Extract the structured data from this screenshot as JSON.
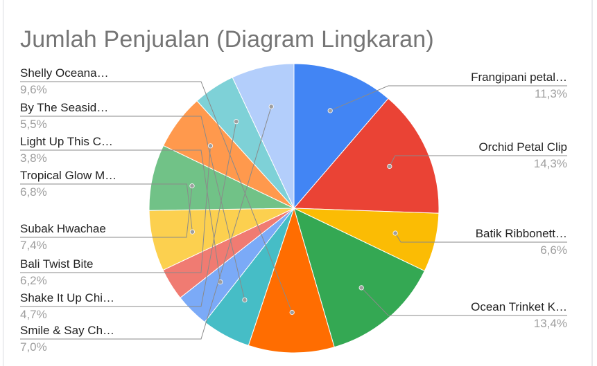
{
  "chart_data": {
    "type": "pie",
    "title": "Jumlah Penjualan (Diagram Lingkaran)",
    "legend": "labels-beside-slices",
    "slices": [
      {
        "label": "Frangipani petal…",
        "pct_label": "11,3%",
        "value": 11.3,
        "color": "#4285f4",
        "side": "right"
      },
      {
        "label": "Orchid Petal Clip",
        "pct_label": "14,3%",
        "value": 14.3,
        "color": "#ea4335",
        "side": "right"
      },
      {
        "label": "Batik Ribbonett…",
        "pct_label": "6,6%",
        "value": 6.6,
        "color": "#fbbc04",
        "side": "right"
      },
      {
        "label": "Ocean Trinket K…",
        "pct_label": "13,4%",
        "value": 13.4,
        "color": "#34a853",
        "side": "right"
      },
      {
        "label": "Shelly Oceana…",
        "pct_label": "9,6%",
        "value": 9.6,
        "color": "#ff6d01",
        "side": "left"
      },
      {
        "label": "By The Seasid…",
        "pct_label": "5,5%",
        "value": 5.5,
        "color": "#46bdc6",
        "side": "left"
      },
      {
        "label": "Light Up This C…",
        "pct_label": "3,8%",
        "value": 3.8,
        "color": "#7baaf7",
        "side": "left"
      },
      {
        "label": "",
        "pct_label": "",
        "value": 3.6,
        "color": "#f07b72",
        "side": "none"
      },
      {
        "label": "Tropical Glow M…",
        "pct_label": "6,8%",
        "value": 6.8,
        "color": "#fcd04f",
        "side": "left"
      },
      {
        "label": "Subak Hwachae",
        "pct_label": "7,4%",
        "value": 7.4,
        "color": "#71c287",
        "side": "left"
      },
      {
        "label": "Bali Twist Bite",
        "pct_label": "6,2%",
        "value": 6.2,
        "color": "#ff994d",
        "side": "left"
      },
      {
        "label": "Shake It Up Chi…",
        "pct_label": "4,7%",
        "value": 4.7,
        "color": "#7ed1d7",
        "side": "left"
      },
      {
        "label": "Smile & Say Ch…",
        "pct_label": "7,0%",
        "value": 7.0,
        "color": "#b3cefb",
        "side": "left"
      }
    ]
  }
}
